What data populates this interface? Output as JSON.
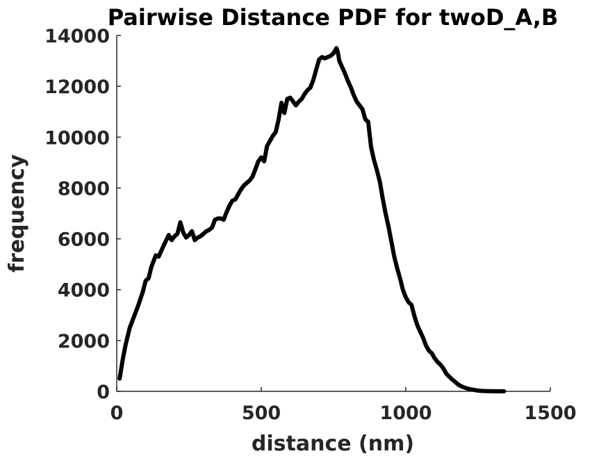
{
  "chart_data": {
    "type": "line",
    "title": "Pairwise Distance PDF for twoD_A,B",
    "xlabel": "distance (nm)",
    "ylabel": "frequency",
    "xlim": [
      0,
      1500
    ],
    "ylim": [
      0,
      14000
    ],
    "xticks": [
      0,
      500,
      1000,
      1500
    ],
    "yticks": [
      0,
      2000,
      4000,
      6000,
      8000,
      10000,
      12000,
      14000
    ],
    "grid": false,
    "series": [
      {
        "color": "#000000",
        "x": [
          10,
          20,
          30,
          45,
          60,
          75,
          90,
          100,
          110,
          120,
          135,
          145,
          155,
          165,
          180,
          190,
          200,
          210,
          220,
          230,
          240,
          250,
          260,
          270,
          280,
          290,
          300,
          310,
          320,
          330,
          340,
          350,
          360,
          370,
          380,
          390,
          400,
          410,
          420,
          430,
          440,
          450,
          460,
          470,
          480,
          490,
          500,
          510,
          520,
          530,
          540,
          550,
          560,
          570,
          580,
          590,
          600,
          610,
          620,
          630,
          640,
          650,
          660,
          670,
          680,
          690,
          700,
          710,
          720,
          730,
          740,
          750,
          760,
          765,
          770,
          780,
          790,
          800,
          810,
          820,
          830,
          840,
          850,
          860,
          870,
          880,
          890,
          900,
          910,
          920,
          930,
          940,
          950,
          960,
          970,
          980,
          990,
          1000,
          1010,
          1020,
          1030,
          1040,
          1050,
          1060,
          1070,
          1080,
          1090,
          1100,
          1110,
          1120,
          1130,
          1140,
          1150,
          1160,
          1170,
          1180,
          1190,
          1200,
          1210,
          1220,
          1230,
          1240,
          1250,
          1260,
          1270,
          1280,
          1290,
          1300,
          1310,
          1320,
          1330,
          1340
        ],
        "values": [
          500,
          1200,
          1800,
          2500,
          2950,
          3400,
          3900,
          4350,
          4450,
          4900,
          5350,
          5300,
          5550,
          5800,
          6150,
          5950,
          6100,
          6200,
          6650,
          6250,
          6050,
          6150,
          6300,
          5950,
          6050,
          6100,
          6200,
          6300,
          6350,
          6450,
          6750,
          6800,
          6800,
          6750,
          7050,
          7300,
          7500,
          7550,
          7750,
          7950,
          8100,
          8200,
          8300,
          8450,
          8750,
          9050,
          9200,
          9050,
          9650,
          9850,
          10050,
          10200,
          10700,
          11350,
          10950,
          11500,
          11550,
          11400,
          11250,
          11400,
          11500,
          11700,
          11850,
          11950,
          12250,
          12650,
          13050,
          13150,
          13100,
          13150,
          13200,
          13300,
          13500,
          13350,
          13000,
          12750,
          12500,
          12200,
          11950,
          11650,
          11400,
          11250,
          11100,
          10700,
          10600,
          9600,
          9100,
          8700,
          8250,
          7600,
          7000,
          6500,
          5900,
          5300,
          4850,
          4450,
          4000,
          3700,
          3500,
          3400,
          2950,
          2600,
          2350,
          2100,
          1800,
          1600,
          1500,
          1300,
          1150,
          1050,
          900,
          700,
          580,
          470,
          380,
          280,
          210,
          160,
          120,
          90,
          70,
          50,
          30,
          20,
          15,
          10,
          5,
          5,
          3,
          3,
          2,
          2
        ]
      }
    ]
  }
}
